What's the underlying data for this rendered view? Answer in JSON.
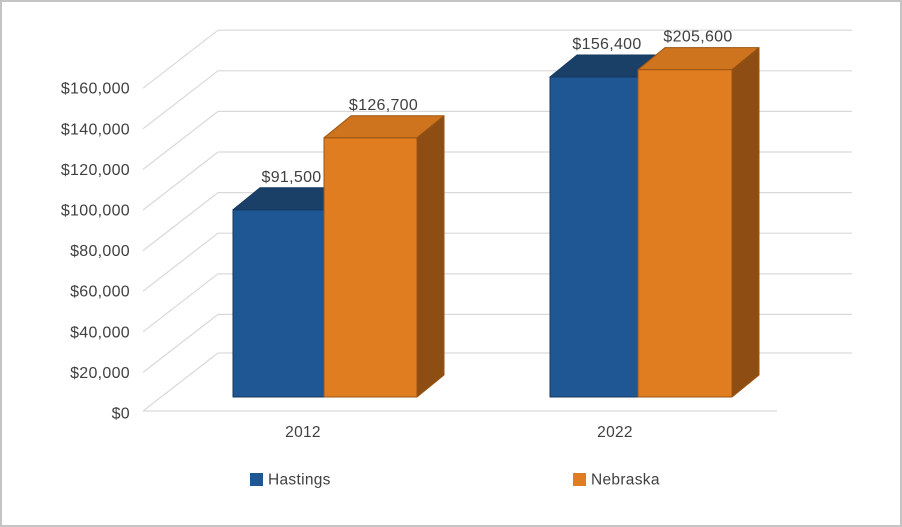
{
  "chart_data": {
    "type": "bar",
    "style": "3d-clustered-column",
    "categories": [
      "2012",
      "2022"
    ],
    "series": [
      {
        "name": "Hastings",
        "color": "#1F5694",
        "values": [
          91500,
          156400
        ],
        "data_labels": [
          "$91,500",
          "$156,400"
        ],
        "face_colors": {
          "front": "#1F5694",
          "top": "#1A4068",
          "side": "#133150",
          "edge": "#14395E"
        }
      },
      {
        "name": "Nebraska",
        "color": "#E07D20",
        "values": [
          126700,
          205600
        ],
        "data_labels": [
          "$126,700",
          "$205,600"
        ],
        "face_colors": {
          "front": "#E07D20",
          "top": "#CE741E",
          "side": "#8E4D12",
          "edge": "#9A5413"
        }
      }
    ],
    "y_axis": {
      "min": 0,
      "max": 160000,
      "step": 20000,
      "tick_labels": [
        "$0",
        "$20,000",
        "$40,000",
        "$60,000",
        "$80,000",
        "$100,000",
        "$120,000",
        "$140,000",
        "$160,000"
      ]
    },
    "legend": {
      "position": "bottom",
      "entries": [
        "Hastings",
        "Nebraska"
      ]
    },
    "gridlines": true,
    "ylim": [
      0,
      160000
    ],
    "title": "",
    "xlabel": "",
    "ylabel": ""
  },
  "colors": {
    "background": "#FFFFFF",
    "border": "#C4C4C4",
    "gridline": "#D9D9D9",
    "text": "#404040"
  }
}
